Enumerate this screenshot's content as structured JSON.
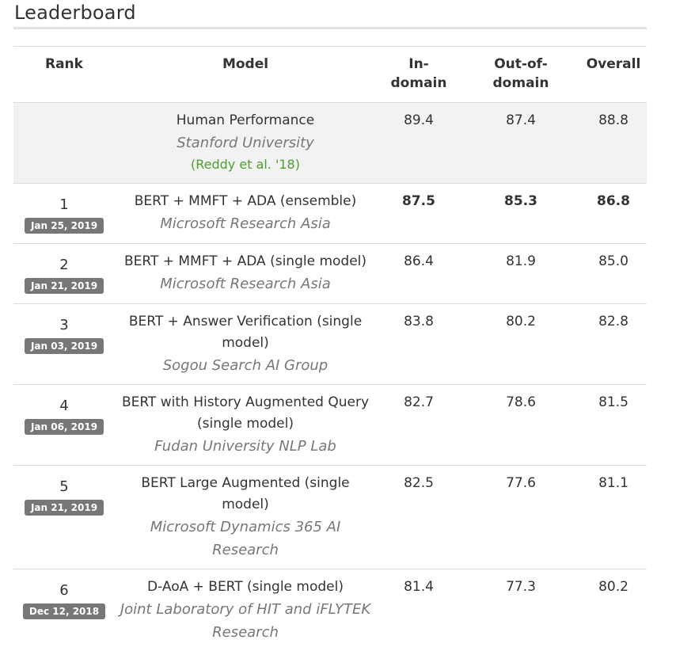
{
  "page": {
    "title": "Leaderboard"
  },
  "headers": {
    "rank": "Rank",
    "model": "Model",
    "in_domain": "In-domain",
    "out_of_domain": "Out-of-domain",
    "overall": "Overall"
  },
  "human": {
    "model": "Human Performance",
    "org": "Stanford University",
    "reference": "(Reddy et al. '18)",
    "in_domain": "89.4",
    "out_of_domain": "87.4",
    "overall": "88.8"
  },
  "rows": [
    {
      "rank": "1",
      "date": "Jan 25, 2019",
      "model": "BERT + MMFT + ADA (ensemble)",
      "org": "Microsoft Research Asia",
      "in_domain": "87.5",
      "out_of_domain": "85.3",
      "overall": "86.8",
      "best": true
    },
    {
      "rank": "2",
      "date": "Jan 21, 2019",
      "model": "BERT + MMFT + ADA (single model)",
      "org": "Microsoft Research Asia",
      "in_domain": "86.4",
      "out_of_domain": "81.9",
      "overall": "85.0",
      "best": false
    },
    {
      "rank": "3",
      "date": "Jan 03, 2019",
      "model": "BERT + Answer Verification (single model)",
      "org": "Sogou Search AI Group",
      "in_domain": "83.8",
      "out_of_domain": "80.2",
      "overall": "82.8",
      "best": false
    },
    {
      "rank": "4",
      "date": "Jan 06, 2019",
      "model": "BERT with History Augmented Query (single model)",
      "org": "Fudan University NLP Lab",
      "in_domain": "82.7",
      "out_of_domain": "78.6",
      "overall": "81.5",
      "best": false
    },
    {
      "rank": "5",
      "date": "Jan 21, 2019",
      "model": "BERT Large Augmented (single model)",
      "org": "Microsoft Dynamics 365 AI Research",
      "in_domain": "82.5",
      "out_of_domain": "77.6",
      "overall": "81.1",
      "best": false
    },
    {
      "rank": "6",
      "date": "Dec 12, 2018",
      "model": "D-AoA + BERT (single model)",
      "org": "Joint Laboratory of HIT and iFLYTEK Research",
      "in_domain": "81.4",
      "out_of_domain": "77.3",
      "overall": "80.2",
      "best": false
    }
  ]
}
